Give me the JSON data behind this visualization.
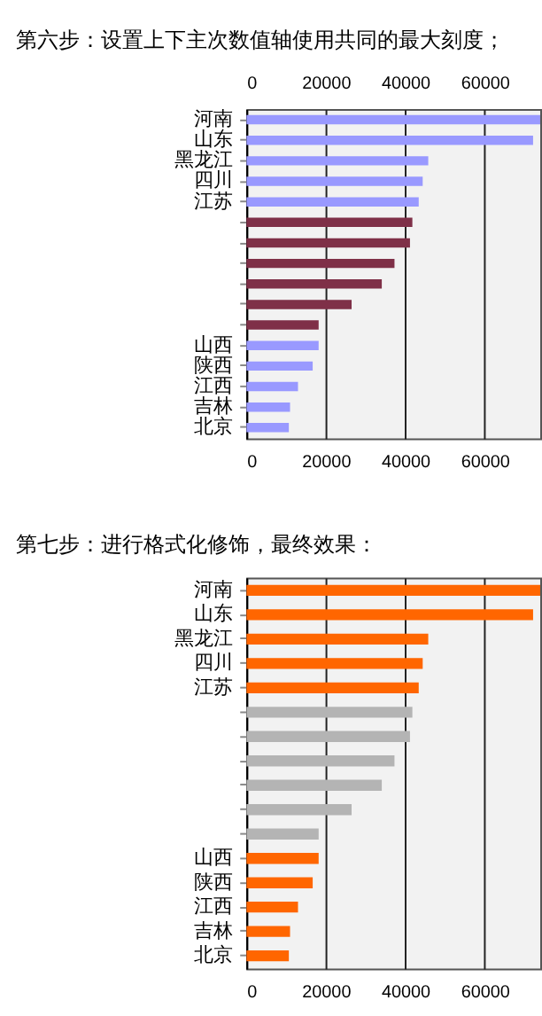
{
  "chart_data": [
    {
      "type": "bar",
      "orientation": "horizontal",
      "title": "第六步：设置上下主次数值轴使用共同的最大刻度；",
      "categories": [
        "河南",
        "山东",
        "黑龙江",
        "四川",
        "江苏",
        null,
        null,
        null,
        null,
        null,
        null,
        "山西",
        "陕西",
        "江西",
        "吉林",
        "北京"
      ],
      "series": [
        {
          "color": "#9999ff",
          "values": [
            74000,
            72200,
            45800,
            44400,
            43400,
            null,
            null,
            null,
            null,
            null,
            null,
            18200,
            16700,
            13000,
            11000,
            10700
          ]
        },
        {
          "color": "#7f3048",
          "values": [
            null,
            null,
            null,
            null,
            null,
            41800,
            41200,
            37300,
            34100,
            26500,
            18200,
            null,
            null,
            null,
            null,
            null
          ]
        }
      ],
      "xlim": [
        0,
        74000
      ],
      "xticks": [
        0,
        20000,
        40000,
        60000
      ],
      "x2lim": [
        0,
        74000
      ],
      "x2ticks": [
        0,
        20000,
        40000,
        60000
      ],
      "grid": "x"
    },
    {
      "type": "bar",
      "orientation": "horizontal",
      "title": "第七步：进行格式化修饰，最终效果：",
      "categories": [
        "河南",
        "山东",
        "黑龙江",
        "四川",
        "江苏",
        null,
        null,
        null,
        null,
        null,
        null,
        "山西",
        "陕西",
        "江西",
        "吉林",
        "北京"
      ],
      "series": [
        {
          "color": "#ff6600",
          "values": [
            74000,
            72200,
            45800,
            44400,
            43400,
            null,
            null,
            null,
            null,
            null,
            null,
            18200,
            16700,
            13000,
            11000,
            10700
          ]
        },
        {
          "color": "#b4b4b4",
          "values": [
            null,
            null,
            null,
            null,
            null,
            41800,
            41200,
            37300,
            34100,
            26500,
            18200,
            null,
            null,
            null,
            null,
            null
          ]
        }
      ],
      "xlim": [
        0,
        74000
      ],
      "xticks": [
        0,
        20000,
        40000,
        60000
      ],
      "grid": "x"
    }
  ]
}
